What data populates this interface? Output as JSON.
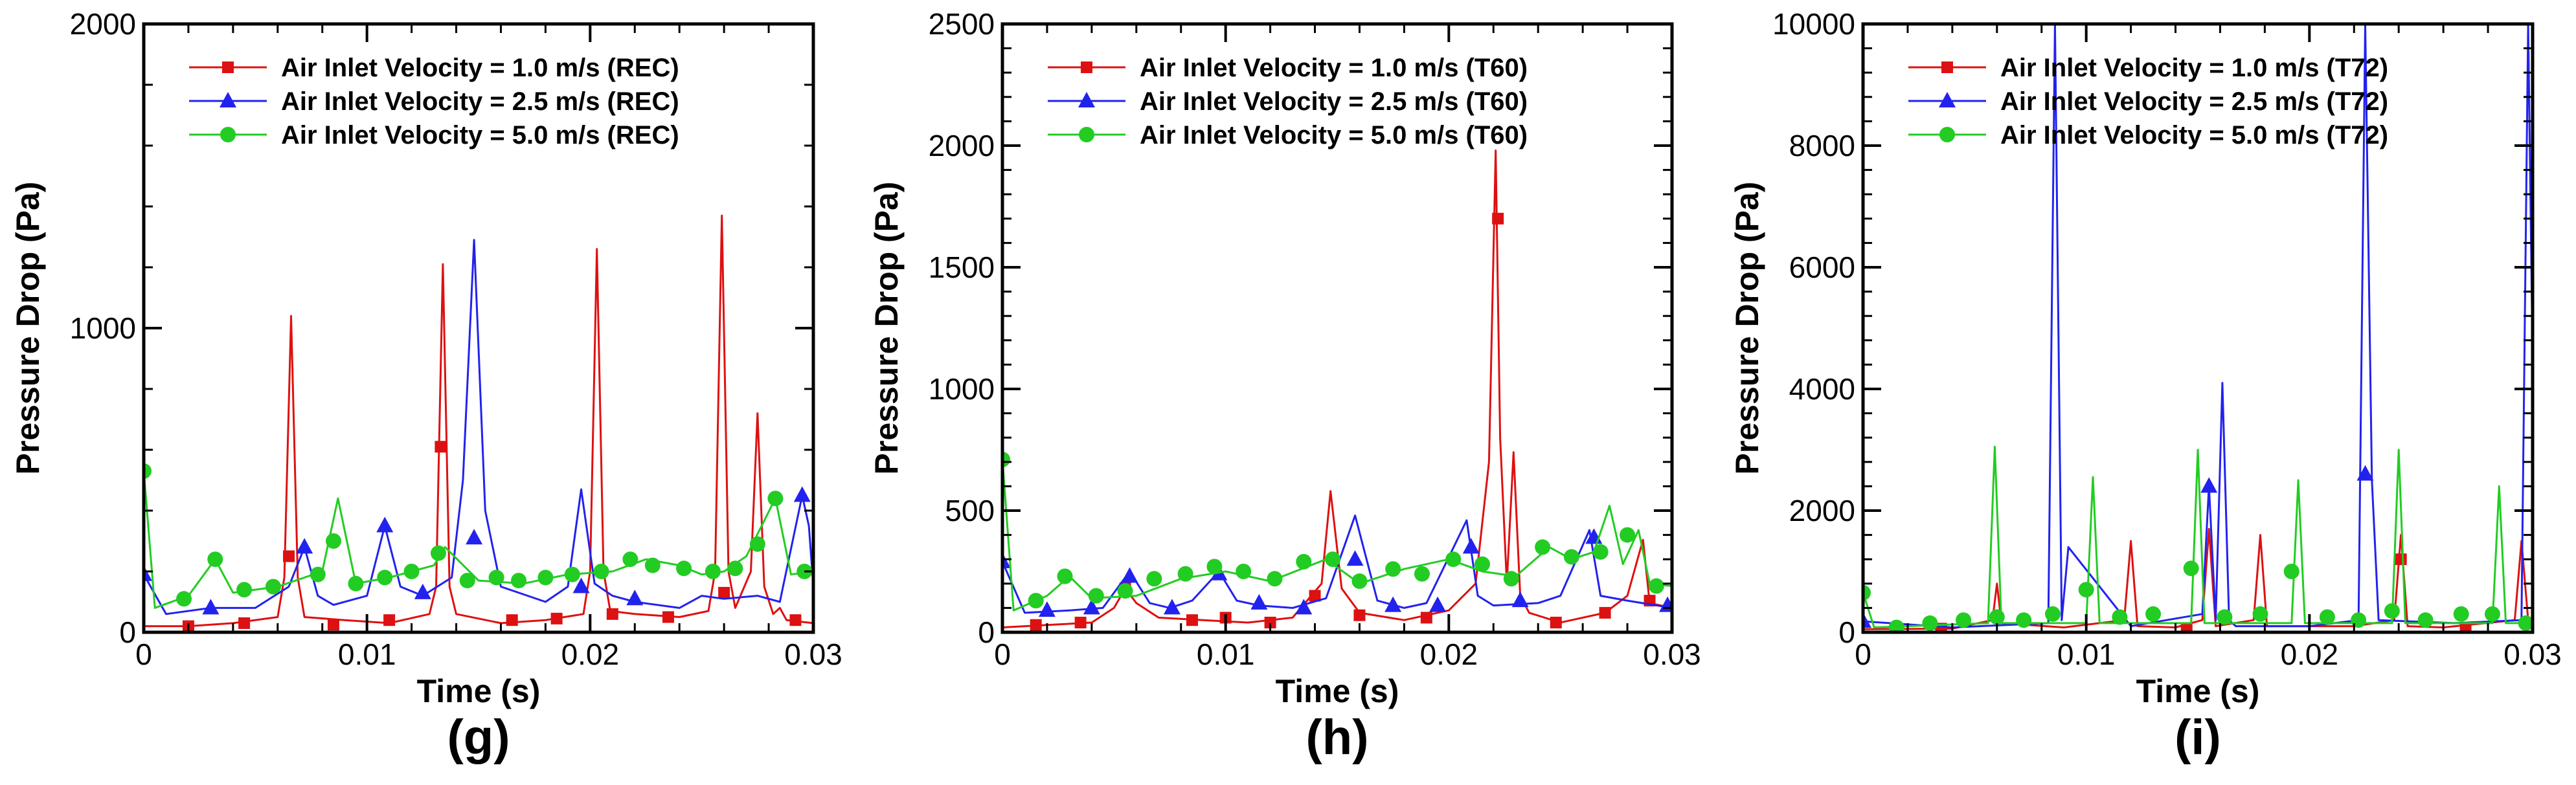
{
  "colors": {
    "red": "#dd1111",
    "blue": "#2222ee",
    "green": "#22cc22",
    "axis": "#000000"
  },
  "chart_data": [
    {
      "type": "line",
      "panel_label": "(g)",
      "xlabel": "Time (s)",
      "ylabel": "Pressure Drop (Pa)",
      "xlim": [
        0,
        0.03
      ],
      "ylim": [
        0,
        2000
      ],
      "xticks": [
        0,
        0.01,
        0.02,
        0.03
      ],
      "xtick_labels": [
        "0",
        "0.01",
        "0.02",
        "0.03"
      ],
      "yticks": [
        0,
        1000,
        2000
      ],
      "ytick_labels": [
        "0",
        "1000",
        "2000"
      ],
      "legend_position": "top-left",
      "series": [
        {
          "name": "Air Inlet Velocity = 1.0 m/s (REC)",
          "color": "#dd1111",
          "marker": "square",
          "x": [
            0,
            0.002,
            0.004,
            0.006,
            0.0063,
            0.0066,
            0.0069,
            0.0072,
            0.009,
            0.011,
            0.0128,
            0.0131,
            0.0134,
            0.0137,
            0.014,
            0.016,
            0.018,
            0.0197,
            0.02,
            0.0203,
            0.0206,
            0.0209,
            0.022,
            0.024,
            0.0253,
            0.0256,
            0.0259,
            0.0262,
            0.0265,
            0.0272,
            0.0275,
            0.0278,
            0.0282,
            0.0285,
            0.0288,
            0.03
          ],
          "y": [
            20,
            20,
            30,
            50,
            180,
            1040,
            180,
            50,
            40,
            30,
            60,
            150,
            1210,
            150,
            60,
            30,
            40,
            60,
            200,
            1260,
            200,
            70,
            60,
            50,
            70,
            200,
            1370,
            200,
            80,
            200,
            720,
            150,
            60,
            80,
            40,
            30
          ],
          "marker_x": [
            0.002,
            0.0045,
            0.0065,
            0.0085,
            0.011,
            0.0133,
            0.0165,
            0.0185,
            0.021,
            0.0235,
            0.026,
            0.0292
          ],
          "marker_y": [
            20,
            30,
            250,
            25,
            40,
            610,
            40,
            45,
            60,
            50,
            130,
            40
          ]
        },
        {
          "name": "Air Inlet Velocity = 2.5 m/s (REC)",
          "color": "#2222ee",
          "marker": "triangle",
          "x": [
            0,
            0.001,
            0.003,
            0.005,
            0.0065,
            0.0072,
            0.0078,
            0.0085,
            0.01,
            0.0108,
            0.0115,
            0.0125,
            0.0138,
            0.0143,
            0.0148,
            0.0153,
            0.016,
            0.018,
            0.019,
            0.0196,
            0.0202,
            0.021,
            0.022,
            0.024,
            0.025,
            0.026,
            0.0275,
            0.0285,
            0.0295,
            0.0298,
            0.03
          ],
          "y": [
            190,
            60,
            80,
            80,
            150,
            280,
            120,
            90,
            120,
            350,
            150,
            120,
            180,
            500,
            1290,
            400,
            150,
            100,
            150,
            470,
            160,
            120,
            100,
            80,
            120,
            110,
            120,
            100,
            450,
            350,
            150
          ],
          "marker_x": [
            0,
            0.003,
            0.0072,
            0.0108,
            0.0125,
            0.0148,
            0.0196,
            0.022,
            0.0295
          ],
          "marker_y": [
            190,
            80,
            280,
            350,
            130,
            310,
            150,
            110,
            450
          ]
        },
        {
          "name": "Air Inlet Velocity = 5.0 m/s (REC)",
          "color": "#22cc22",
          "marker": "circle",
          "x": [
            0,
            0.0005,
            0.002,
            0.0032,
            0.004,
            0.006,
            0.008,
            0.0087,
            0.0095,
            0.011,
            0.013,
            0.0135,
            0.015,
            0.017,
            0.019,
            0.021,
            0.0225,
            0.024,
            0.025,
            0.026,
            0.027,
            0.0283,
            0.029,
            0.03
          ],
          "y": [
            530,
            80,
            120,
            240,
            130,
            150,
            200,
            440,
            160,
            180,
            220,
            280,
            170,
            160,
            190,
            200,
            240,
            220,
            190,
            200,
            250,
            440,
            190,
            200
          ],
          "marker_x": [
            0,
            0.0018,
            0.0032,
            0.0045,
            0.0058,
            0.0078,
            0.0085,
            0.0095,
            0.0108,
            0.012,
            0.0132,
            0.0145,
            0.0158,
            0.0168,
            0.018,
            0.0192,
            0.0205,
            0.0218,
            0.0228,
            0.0242,
            0.0255,
            0.0265,
            0.0275,
            0.0283,
            0.0296
          ],
          "marker_y": [
            530,
            110,
            240,
            140,
            150,
            190,
            300,
            160,
            180,
            200,
            260,
            170,
            180,
            170,
            180,
            190,
            200,
            240,
            220,
            210,
            200,
            210,
            290,
            440,
            200
          ]
        }
      ]
    },
    {
      "type": "line",
      "panel_label": "(h)",
      "xlabel": "Time (s)",
      "ylabel": "Pressure Drop (Pa)",
      "xlim": [
        0,
        0.03
      ],
      "ylim": [
        0,
        2500
      ],
      "xticks": [
        0,
        0.01,
        0.02,
        0.03
      ],
      "xtick_labels": [
        "0",
        "0.01",
        "0.02",
        "0.03"
      ],
      "yticks": [
        0,
        500,
        1000,
        1500,
        2000,
        2500
      ],
      "ytick_labels": [
        "0",
        "500",
        "1000",
        "1500",
        "2000",
        "2500"
      ],
      "legend_position": "top-left",
      "series": [
        {
          "name": "Air Inlet Velocity = 1.0 m/s (T60)",
          "color": "#dd1111",
          "marker": "square",
          "x": [
            0,
            0.002,
            0.004,
            0.005,
            0.0055,
            0.006,
            0.007,
            0.009,
            0.011,
            0.013,
            0.0143,
            0.0147,
            0.0152,
            0.016,
            0.018,
            0.02,
            0.0212,
            0.0218,
            0.0221,
            0.0223,
            0.0226,
            0.0229,
            0.0232,
            0.0236,
            0.025,
            0.027,
            0.028,
            0.0287,
            0.029,
            0.03
          ],
          "y": [
            20,
            30,
            40,
            100,
            180,
            120,
            60,
            50,
            40,
            60,
            200,
            580,
            180,
            80,
            50,
            90,
            200,
            700,
            1980,
            800,
            200,
            740,
            150,
            80,
            40,
            80,
            150,
            380,
            120,
            100
          ],
          "marker_x": [
            0.0015,
            0.0035,
            0.0055,
            0.0085,
            0.01,
            0.012,
            0.014,
            0.016,
            0.019,
            0.0222,
            0.0248,
            0.027,
            0.029
          ],
          "marker_y": [
            30,
            40,
            180,
            50,
            60,
            40,
            150,
            70,
            60,
            1700,
            40,
            80,
            130
          ]
        },
        {
          "name": "Air Inlet Velocity = 2.5 m/s (T60)",
          "color": "#2222ee",
          "marker": "triangle",
          "x": [
            0,
            0.001,
            0.003,
            0.0045,
            0.0057,
            0.0066,
            0.0075,
            0.0085,
            0.0097,
            0.0105,
            0.0115,
            0.013,
            0.0145,
            0.0158,
            0.0168,
            0.018,
            0.019,
            0.0208,
            0.0213,
            0.022,
            0.024,
            0.025,
            0.0263,
            0.0268,
            0.028,
            0.03
          ],
          "y": [
            290,
            80,
            90,
            100,
            250,
            120,
            100,
            130,
            250,
            130,
            110,
            100,
            140,
            480,
            130,
            100,
            120,
            460,
            150,
            110,
            120,
            150,
            420,
            150,
            130,
            100
          ],
          "marker_x": [
            0,
            0.002,
            0.004,
            0.0057,
            0.0076,
            0.0097,
            0.0115,
            0.0135,
            0.0158,
            0.0175,
            0.0195,
            0.021,
            0.0232,
            0.0265,
            0.0298
          ],
          "marker_y": [
            290,
            90,
            100,
            230,
            100,
            240,
            120,
            100,
            300,
            110,
            110,
            350,
            130,
            390,
            110
          ]
        },
        {
          "name": "Air Inlet Velocity = 5.0 m/s (T60)",
          "color": "#22cc22",
          "marker": "circle",
          "x": [
            0,
            0.0005,
            0.002,
            0.003,
            0.004,
            0.006,
            0.008,
            0.01,
            0.012,
            0.0145,
            0.016,
            0.018,
            0.02,
            0.0215,
            0.023,
            0.0245,
            0.0255,
            0.0265,
            0.0272,
            0.0278,
            0.0285,
            0.029,
            0.03
          ],
          "y": [
            710,
            90,
            150,
            230,
            140,
            150,
            220,
            250,
            210,
            300,
            200,
            260,
            300,
            250,
            230,
            350,
            300,
            330,
            520,
            280,
            420,
            200,
            190
          ],
          "marker_x": [
            0,
            0.0015,
            0.0028,
            0.0042,
            0.0055,
            0.0068,
            0.0082,
            0.0095,
            0.0108,
            0.0122,
            0.0135,
            0.0148,
            0.016,
            0.0175,
            0.0188,
            0.0202,
            0.0215,
            0.0228,
            0.0242,
            0.0255,
            0.0268,
            0.028,
            0.0293
          ],
          "marker_y": [
            710,
            130,
            230,
            150,
            170,
            220,
            240,
            270,
            250,
            220,
            290,
            300,
            210,
            260,
            240,
            300,
            280,
            220,
            350,
            310,
            330,
            400,
            190
          ]
        }
      ]
    },
    {
      "type": "line",
      "panel_label": "(i)",
      "xlabel": "Time (s)",
      "ylabel": "Pressure Drop (Pa)",
      "xlim": [
        0,
        0.03
      ],
      "ylim": [
        0,
        10000
      ],
      "xticks": [
        0,
        0.01,
        0.02,
        0.03
      ],
      "xtick_labels": [
        "0",
        "0.01",
        "0.02",
        "0.03"
      ],
      "yticks": [
        0,
        2000,
        4000,
        6000,
        8000,
        10000
      ],
      "ytick_labels": [
        "0",
        "2000",
        "4000",
        "6000",
        "8000",
        "10000"
      ],
      "legend_position": "top-left",
      "series": [
        {
          "name": "Air Inlet Velocity = 1.0 m/s (T72)",
          "color": "#dd1111",
          "marker": "square",
          "x": [
            0,
            0.004,
            0.0058,
            0.006,
            0.0062,
            0.009,
            0.0117,
            0.012,
            0.0123,
            0.014,
            0.0152,
            0.0155,
            0.0158,
            0.0175,
            0.0178,
            0.0181,
            0.022,
            0.0238,
            0.0241,
            0.0244,
            0.026,
            0.0292,
            0.0295,
            0.0298,
            0.03
          ],
          "y": [
            50,
            60,
            200,
            800,
            150,
            80,
            200,
            1500,
            100,
            80,
            200,
            1700,
            100,
            200,
            1600,
            100,
            100,
            200,
            1600,
            100,
            80,
            200,
            1500,
            200,
            100
          ],
          "marker_x": [
            0.0035,
            0.0145,
            0.0241,
            0.027
          ],
          "marker_y": [
            60,
            40,
            1200,
            70
          ]
        },
        {
          "name": "Air Inlet Velocity = 2.5 m/s (T72)",
          "color": "#2222ee",
          "marker": "triangle",
          "x": [
            0,
            0.004,
            0.0083,
            0.0086,
            0.0089,
            0.0092,
            0.012,
            0.0152,
            0.0155,
            0.0158,
            0.0161,
            0.0164,
            0.0167,
            0.02,
            0.0222,
            0.0225,
            0.0228,
            0.0231,
            0.0265,
            0.0295,
            0.0298,
            0.0301
          ],
          "y": [
            180,
            80,
            150,
            10000,
            200,
            1400,
            100,
            300,
            2400,
            200,
            4100,
            200,
            100,
            100,
            200,
            10000,
            2500,
            200,
            150,
            200,
            10000,
            1800
          ],
          "marker_x": [
            0,
            0.0155,
            0.0225
          ],
          "marker_y": [
            180,
            2400,
            2600
          ]
        },
        {
          "name": "Air Inlet Velocity = 5.0 m/s (T72)",
          "color": "#22cc22",
          "marker": "circle",
          "x": [
            0,
            0.0005,
            0.0056,
            0.0059,
            0.0062,
            0.01,
            0.0103,
            0.0106,
            0.0147,
            0.015,
            0.0153,
            0.0192,
            0.0195,
            0.0198,
            0.0237,
            0.024,
            0.0243,
            0.0282,
            0.0285,
            0.0288,
            0.03
          ],
          "y": [
            650,
            80,
            150,
            3050,
            150,
            150,
            2550,
            150,
            150,
            3000,
            150,
            150,
            2500,
            150,
            150,
            3000,
            150,
            150,
            2400,
            150,
            150
          ],
          "marker_x": [
            0,
            0.0015,
            0.003,
            0.0045,
            0.006,
            0.0072,
            0.0085,
            0.01,
            0.0115,
            0.013,
            0.0147,
            0.0162,
            0.0178,
            0.0192,
            0.0208,
            0.0222,
            0.0237,
            0.0252,
            0.0268,
            0.0282,
            0.0297
          ],
          "marker_y": [
            650,
            80,
            150,
            200,
            250,
            200,
            300,
            700,
            250,
            300,
            1050,
            250,
            300,
            1000,
            250,
            200,
            350,
            200,
            300,
            300,
            150
          ]
        }
      ]
    }
  ]
}
